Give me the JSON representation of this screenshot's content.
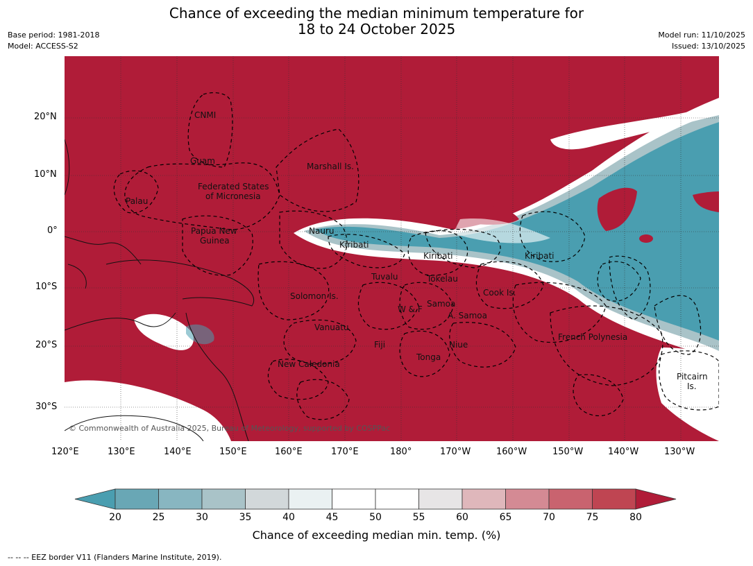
{
  "title": {
    "line1": "Chance of exceeding the median minimum temperature for",
    "line2": "18 to 24 October 2025"
  },
  "meta": {
    "base_period": "Base period: 1981-2018",
    "model": "Model: ACCESS-S2",
    "model_run": "Model run: 11/10/2025",
    "issued": "Issued: 13/10/2025"
  },
  "lat_labels": [
    "20°N",
    "10°N",
    "0°",
    "10°S",
    "20°S",
    "30°S"
  ],
  "lon_labels": [
    "120°E",
    "130°E",
    "140°E",
    "150°E",
    "160°E",
    "170°E",
    "180°",
    "170°W",
    "160°W",
    "150°W",
    "140°W",
    "130°W"
  ],
  "regions": {
    "cnmi": "CNMI",
    "guam": "Guam",
    "marshall": "Marshall Is.",
    "fsm1": "Federated States",
    "fsm2": "of Micronesia",
    "palau": "Palau",
    "nauru": "Nauru",
    "png1": "Papua New",
    "png2": "Guinea",
    "kiribati_w": "Kiribati",
    "kiribati_c": "Kiribati",
    "kiribati_e": "Kiribati",
    "tuvalu": "Tuvalu",
    "tokelau": "Tokelau",
    "cook": "Cook Is.",
    "solomon": "Solomon Is.",
    "samoa": "Samoa",
    "wf": "W & F",
    "asamoa": "A. Samoa",
    "vanuatu": "Vanuatu",
    "fiji": "Fiji",
    "niue": "Niue",
    "tonga": "Tonga",
    "frpoly": "French Polynesia",
    "newcal": "New Caledonia",
    "pitcairn1": "Pitcairn",
    "pitcairn2": "Is."
  },
  "copyright": "© Commonwealth of Australia 2025, Bureau of Meteorology, supported by COSPPac",
  "colorbar": {
    "ticks": [
      "20",
      "25",
      "30",
      "35",
      "40",
      "45",
      "50",
      "55",
      "60",
      "65",
      "70",
      "75",
      "80"
    ],
    "colors": [
      "#4a9eb0",
      "#69a7b5",
      "#88b6c1",
      "#a9c3c8",
      "#d2d8da",
      "#eaf1f2",
      "#ffffff",
      "#ffffff",
      "#e7e5e6",
      "#dfb7bb",
      "#d48a94",
      "#c9636f",
      "#bf4552",
      "#b01c38"
    ],
    "label": "Chance of exceeding median min. temp. (%)"
  },
  "footnote": "--  --  -- EEZ border V11 (Flanders Marine Institute, 2019)."
}
